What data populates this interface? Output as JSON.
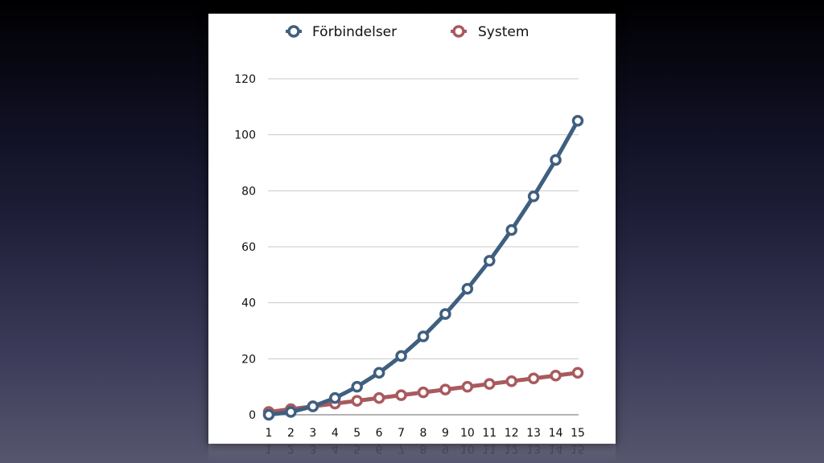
{
  "chart_data": {
    "type": "line",
    "x": [
      1,
      2,
      3,
      4,
      5,
      6,
      7,
      8,
      9,
      10,
      11,
      12,
      13,
      14,
      15
    ],
    "x_tick_labels": [
      "1",
      "2",
      "3",
      "4",
      "5",
      "6",
      "7",
      "8",
      "9",
      "10",
      "11",
      "12",
      "13",
      "14",
      "15"
    ],
    "y_tick_labels": [
      "0",
      "20",
      "40",
      "60",
      "80",
      "100",
      "120"
    ],
    "ylim": [
      0,
      120
    ],
    "grid": true,
    "legend_position": "top",
    "series": [
      {
        "name": "Förbindelser",
        "color": "#3f5f80",
        "values": [
          0,
          1,
          3,
          6,
          10,
          15,
          21,
          28,
          36,
          45,
          55,
          66,
          78,
          91,
          105
        ]
      },
      {
        "name": "System",
        "color": "#a85a5e",
        "values": [
          1,
          2,
          3,
          4,
          5,
          6,
          7,
          8,
          9,
          10,
          11,
          12,
          13,
          14,
          15
        ]
      }
    ]
  }
}
